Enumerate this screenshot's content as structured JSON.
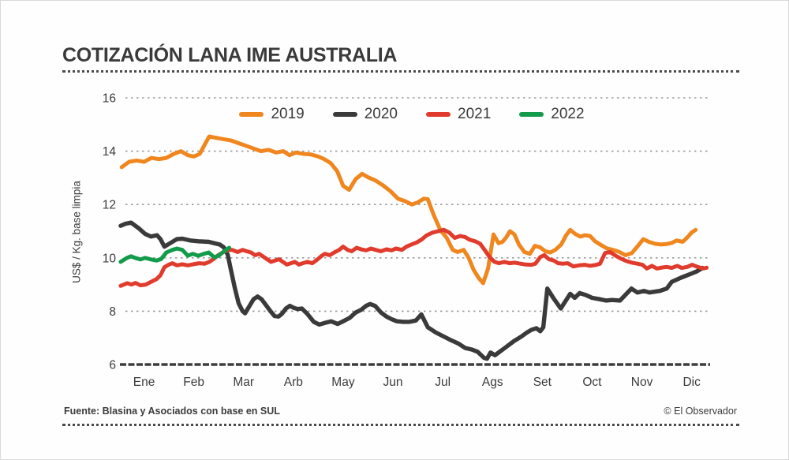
{
  "header": {
    "title": "COTIZACIÓN LANA IME AUSTRALIA"
  },
  "footer": {
    "source": "Fuente: Blasina y Asociados con base en SUL",
    "credit": "© El Observador"
  },
  "colors": {
    "accent": "#F0861E",
    "grid": "#9B9B9B",
    "axis": "#3D3D3D",
    "text": "#3B3B3B"
  },
  "legend": {
    "items": [
      {
        "label": "2019",
        "color": "#F0861E"
      },
      {
        "label": "2020",
        "color": "#3A3A3A"
      },
      {
        "label": "2021",
        "color": "#E03B2C"
      },
      {
        "label": "2022",
        "color": "#129B4B"
      }
    ]
  },
  "chart_data": {
    "type": "line",
    "title": "COTIZACIÓN LANA IME AUSTRALIA",
    "xlabel": "",
    "ylabel": "US$ / Kg. base limpia",
    "ylim": [
      6,
      16
    ],
    "yticks": [
      16,
      14,
      12,
      10,
      8,
      6
    ],
    "x_months": [
      "Ene",
      "Feb",
      "Mar",
      "Arb",
      "May",
      "Jun",
      "Jul",
      "Ags",
      "Set",
      "Oct",
      "Nov",
      "Dic"
    ],
    "x_unit": "month position, 0 = start of Ene, 12 = end of Dic",
    "grid": "horizontal dotted",
    "legend_position": "top center",
    "series": [
      {
        "name": "2019",
        "color": "#F0861E",
        "x": [
          0.05,
          0.2,
          0.35,
          0.5,
          0.65,
          0.8,
          0.95,
          1.1,
          1.24,
          1.38,
          1.5,
          1.62,
          1.72,
          1.81,
          1.95,
          2.1,
          2.25,
          2.4,
          2.55,
          2.7,
          2.85,
          3.0,
          3.15,
          3.3,
          3.42,
          3.55,
          3.7,
          3.85,
          4.0,
          4.12,
          4.25,
          4.38,
          4.5,
          4.62,
          4.75,
          4.88,
          5.0,
          5.15,
          5.3,
          5.45,
          5.6,
          5.75,
          5.88,
          6.0,
          6.12,
          6.2,
          6.32,
          6.45,
          6.58,
          6.7,
          6.8,
          6.92,
          7.02,
          7.12,
          7.22,
          7.31,
          7.41,
          7.52,
          7.62,
          7.7,
          7.78,
          7.85,
          7.94,
          8.03,
          8.14,
          8.25,
          8.35,
          8.45,
          8.56,
          8.66,
          8.76,
          8.88,
          8.98,
          9.06,
          9.16,
          9.26,
          9.36,
          9.46,
          9.56,
          9.68,
          9.8,
          9.92,
          10.05,
          10.17,
          10.3,
          10.42,
          10.53,
          10.64,
          10.76,
          10.88,
          11.0,
          11.1,
          11.2,
          11.32,
          11.42,
          11.5,
          11.58
        ],
        "values": [
          13.4,
          13.6,
          13.65,
          13.6,
          13.75,
          13.7,
          13.75,
          13.9,
          14.0,
          13.85,
          13.8,
          13.9,
          14.25,
          14.55,
          14.5,
          14.45,
          14.4,
          14.3,
          14.2,
          14.1,
          14.0,
          14.05,
          13.95,
          14.0,
          13.85,
          13.95,
          13.9,
          13.88,
          13.8,
          13.7,
          13.55,
          13.25,
          12.7,
          12.55,
          12.95,
          13.15,
          13.02,
          12.9,
          12.72,
          12.5,
          12.22,
          12.12,
          12.0,
          12.08,
          12.22,
          12.2,
          11.6,
          11.05,
          10.75,
          10.3,
          10.22,
          10.3,
          10.0,
          9.55,
          9.25,
          9.05,
          9.6,
          10.88,
          10.55,
          10.6,
          10.78,
          11.0,
          10.88,
          10.5,
          10.22,
          10.15,
          10.45,
          10.4,
          10.25,
          10.2,
          10.3,
          10.5,
          10.85,
          11.05,
          10.9,
          10.8,
          10.85,
          10.82,
          10.62,
          10.48,
          10.35,
          10.3,
          10.22,
          10.1,
          10.18,
          10.45,
          10.7,
          10.6,
          10.53,
          10.5,
          10.52,
          10.56,
          10.65,
          10.6,
          10.78,
          10.95,
          11.05
        ]
      },
      {
        "name": "2020",
        "color": "#3A3A3A",
        "x": [
          0.03,
          0.13,
          0.24,
          0.4,
          0.52,
          0.64,
          0.76,
          0.83,
          0.91,
          1.07,
          1.16,
          1.27,
          1.43,
          1.59,
          1.8,
          1.91,
          2.02,
          2.1,
          2.18,
          2.24,
          2.32,
          2.4,
          2.48,
          2.53,
          2.62,
          2.7,
          2.78,
          2.86,
          2.96,
          3.04,
          3.12,
          3.2,
          3.27,
          3.35,
          3.43,
          3.51,
          3.59,
          3.67,
          3.78,
          3.91,
          4.02,
          4.13,
          4.26,
          4.39,
          4.5,
          4.63,
          4.75,
          4.86,
          4.96,
          5.04,
          5.14,
          5.26,
          5.37,
          5.47,
          5.58,
          5.71,
          5.83,
          5.96,
          6.07,
          6.2,
          6.36,
          6.52,
          6.68,
          6.82,
          6.95,
          7.09,
          7.2,
          7.33,
          7.39,
          7.46,
          7.55,
          7.66,
          7.79,
          7.93,
          8.08,
          8.19,
          8.28,
          8.38,
          8.46,
          8.52,
          8.6,
          8.72,
          8.87,
          9.06,
          9.15,
          9.25,
          9.38,
          9.5,
          9.65,
          9.78,
          9.9,
          10.06,
          10.29,
          10.41,
          10.54,
          10.65,
          10.78,
          10.86,
          11.0,
          11.1,
          11.29,
          11.48,
          11.61,
          11.72
        ],
        "values": [
          11.2,
          11.28,
          11.32,
          11.1,
          10.9,
          10.8,
          10.85,
          10.7,
          10.42,
          10.6,
          10.7,
          10.72,
          10.65,
          10.62,
          10.6,
          10.55,
          10.5,
          10.4,
          10.12,
          9.6,
          8.9,
          8.3,
          8.0,
          7.92,
          8.2,
          8.45,
          8.55,
          8.45,
          8.2,
          8.0,
          7.82,
          7.8,
          7.9,
          8.1,
          8.2,
          8.12,
          8.08,
          8.1,
          7.9,
          7.6,
          7.5,
          7.56,
          7.62,
          7.52,
          7.62,
          7.75,
          7.95,
          8.05,
          8.2,
          8.27,
          8.2,
          7.95,
          7.8,
          7.7,
          7.62,
          7.6,
          7.6,
          7.65,
          7.88,
          7.4,
          7.2,
          7.05,
          6.9,
          6.78,
          6.62,
          6.56,
          6.48,
          6.25,
          6.22,
          6.45,
          6.35,
          6.5,
          6.68,
          6.88,
          7.05,
          7.2,
          7.3,
          7.36,
          7.25,
          7.4,
          8.85,
          8.5,
          8.1,
          8.65,
          8.5,
          8.68,
          8.6,
          8.5,
          8.45,
          8.4,
          8.42,
          8.4,
          8.85,
          8.7,
          8.76,
          8.7,
          8.74,
          8.76,
          8.85,
          9.1,
          9.26,
          9.4,
          9.5,
          9.62
        ]
      },
      {
        "name": "2021",
        "color": "#E03B2C",
        "x": [
          0.03,
          0.16,
          0.25,
          0.33,
          0.43,
          0.54,
          0.64,
          0.75,
          0.83,
          0.91,
          0.99,
          1.07,
          1.16,
          1.27,
          1.38,
          1.49,
          1.61,
          1.72,
          1.81,
          1.89,
          1.99,
          2.08,
          2.18,
          2.27,
          2.38,
          2.48,
          2.56,
          2.65,
          2.73,
          2.81,
          2.89,
          2.97,
          3.05,
          3.13,
          3.21,
          3.29,
          3.37,
          3.45,
          3.53,
          3.61,
          3.69,
          3.78,
          3.88,
          3.97,
          4.05,
          4.13,
          4.23,
          4.32,
          4.42,
          4.5,
          4.59,
          4.67,
          4.77,
          4.86,
          4.96,
          5.06,
          5.15,
          5.26,
          5.37,
          5.47,
          5.56,
          5.68,
          5.77,
          5.87,
          5.98,
          6.07,
          6.18,
          6.3,
          6.41,
          6.52,
          6.63,
          6.74,
          6.85,
          6.95,
          7.04,
          7.15,
          7.25,
          7.36,
          7.44,
          7.54,
          7.63,
          7.74,
          7.84,
          7.95,
          8.06,
          8.17,
          8.28,
          8.36,
          8.46,
          8.54,
          8.63,
          8.73,
          8.82,
          8.92,
          9.01,
          9.12,
          9.24,
          9.35,
          9.46,
          9.57,
          9.66,
          9.76,
          9.86,
          9.97,
          10.08,
          10.19,
          10.3,
          10.41,
          10.51,
          10.6,
          10.7,
          10.8,
          10.91,
          11.0,
          11.1,
          11.21,
          11.3,
          11.41,
          11.51,
          11.62,
          11.73,
          11.8
        ],
        "values": [
          8.95,
          9.05,
          9.0,
          9.06,
          8.97,
          9.0,
          9.1,
          9.2,
          9.35,
          9.65,
          9.74,
          9.8,
          9.72,
          9.76,
          9.72,
          9.76,
          9.8,
          9.78,
          9.85,
          9.95,
          10.1,
          10.2,
          10.3,
          10.3,
          10.22,
          10.3,
          10.25,
          10.2,
          10.1,
          10.15,
          10.05,
          9.95,
          9.85,
          9.9,
          9.95,
          9.85,
          9.75,
          9.8,
          9.85,
          9.75,
          9.8,
          9.85,
          9.8,
          9.92,
          10.05,
          10.15,
          10.1,
          10.2,
          10.3,
          10.42,
          10.3,
          10.25,
          10.38,
          10.32,
          10.28,
          10.35,
          10.3,
          10.25,
          10.32,
          10.28,
          10.35,
          10.3,
          10.42,
          10.5,
          10.58,
          10.68,
          10.85,
          10.95,
          11.0,
          11.05,
          10.95,
          10.75,
          10.82,
          10.78,
          10.68,
          10.62,
          10.53,
          10.25,
          10.03,
          9.85,
          9.8,
          9.85,
          9.8,
          9.82,
          9.78,
          9.75,
          9.74,
          9.78,
          10.03,
          10.1,
          9.95,
          9.9,
          9.8,
          9.78,
          9.8,
          9.68,
          9.72,
          9.74,
          9.7,
          9.73,
          9.78,
          10.18,
          10.22,
          10.08,
          9.97,
          9.88,
          9.82,
          9.78,
          9.74,
          9.6,
          9.7,
          9.6,
          9.64,
          9.66,
          9.62,
          9.7,
          9.62,
          9.66,
          9.74,
          9.66,
          9.6,
          9.63
        ]
      },
      {
        "name": "2022",
        "color": "#129B4B",
        "x": [
          0.03,
          0.16,
          0.24,
          0.32,
          0.43,
          0.52,
          0.64,
          0.75,
          0.84,
          0.95,
          1.07,
          1.16,
          1.27,
          1.38,
          1.48,
          1.59,
          1.7,
          1.8,
          1.91,
          2.0,
          2.08,
          2.15,
          2.21
        ],
        "values": [
          9.85,
          10.0,
          10.06,
          10.0,
          9.94,
          10.0,
          9.94,
          9.9,
          9.95,
          10.2,
          10.3,
          10.35,
          10.3,
          10.08,
          10.15,
          10.08,
          10.15,
          10.2,
          10.02,
          10.08,
          10.2,
          10.3,
          10.38
        ]
      }
    ]
  }
}
